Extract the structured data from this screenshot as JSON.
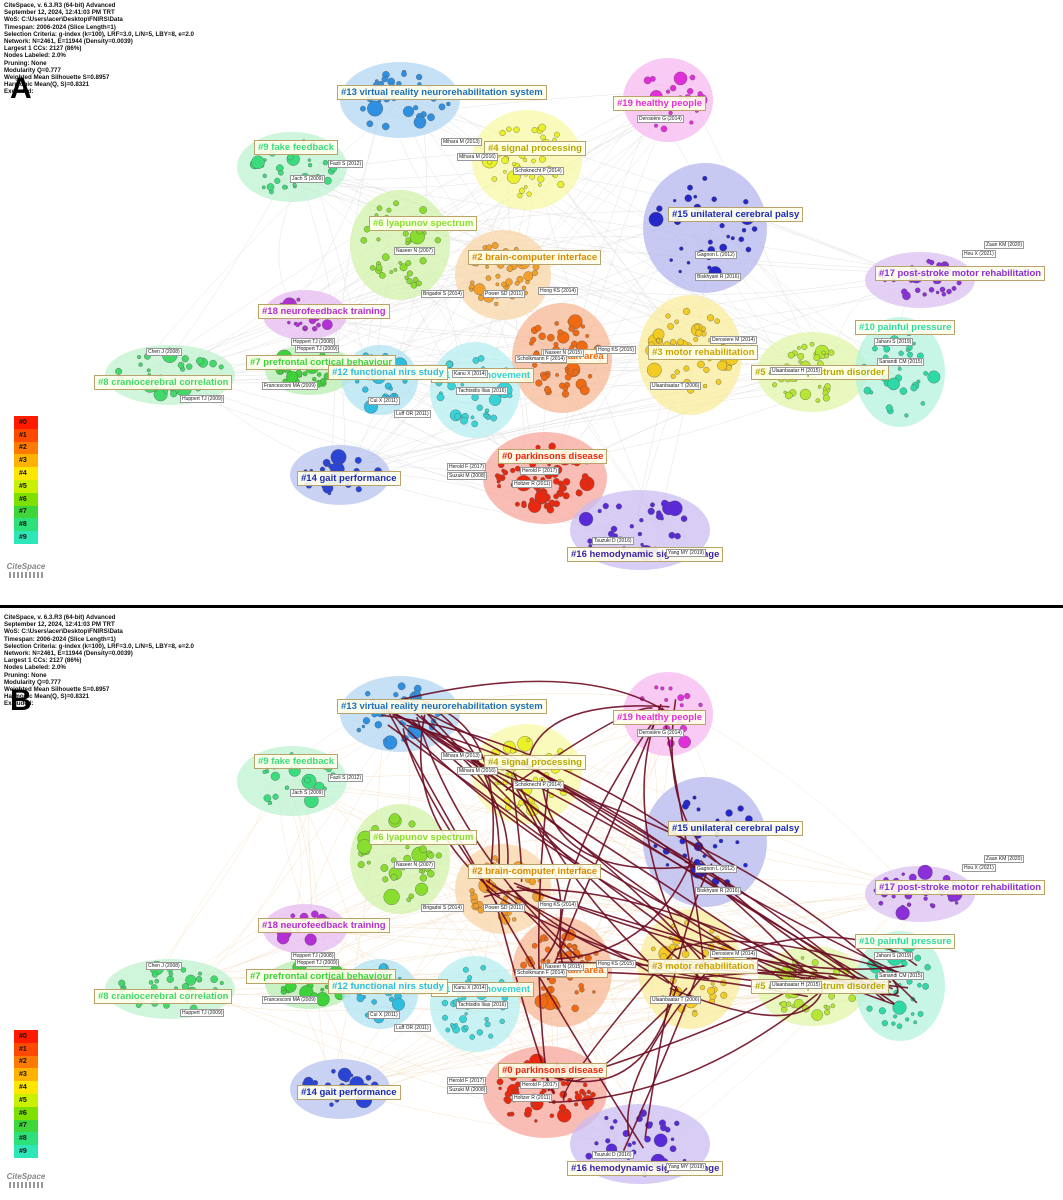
{
  "meta": {
    "lines": [
      "CiteSpace, v. 6.3.R3 (64-bit) Advanced",
      "September 12, 2024, 12:41:03 PM TRT",
      "WoS: C:\\Users\\acer\\Desktop\\FNIRS\\Data",
      "Timespan: 2006-2024 (Slice Length=1)",
      "Selection Criteria: g-index (k=100), LRF=3.0, L/N=5, LBY=8, e=2.0",
      "Network: N=2461, E=11944 (Density=0.0039)",
      "Largest 1 CCs: 2127 (86%)",
      "Nodes Labeled: 2.0%",
      "Pruning: None",
      "Modularity Q=0.777",
      "Weighted Mean Silhouette S=0.8957",
      "Harmonic Mean(Q, S)=0.8321",
      "Excluded:"
    ]
  },
  "panels": [
    {
      "letter": "A",
      "bursts": false
    },
    {
      "letter": "B",
      "bursts": true
    }
  ],
  "clusters": [
    {
      "id": 0,
      "label": "#0 parkinsons disease",
      "color": "#e8290f",
      "hull": "#f7a79c"
    },
    {
      "id": 1,
      "label": "#1 brain area",
      "color": "#ef6a12",
      "hull": "#f7b894"
    },
    {
      "id": 2,
      "label": "#2 brain-computer interface",
      "color": "#f2a02a",
      "hull": "#f9d6a8"
    },
    {
      "id": 3,
      "label": "#3 motor rehabilitation",
      "color": "#f2cb24",
      "hull": "#faec9c"
    },
    {
      "id": 4,
      "label": "#4 signal processing",
      "color": "#eaf02a",
      "hull": "#f7f8a6"
    },
    {
      "id": 5,
      "label": "#5 autism spectrum disorder",
      "color": "#b4e632",
      "hull": "#e2f5a8"
    },
    {
      "id": 6,
      "label": "#6 lyapunov spectrum",
      "color": "#88dd2e",
      "hull": "#d2f2a9"
    },
    {
      "id": 7,
      "label": "#7 prefrontal cortical behaviour",
      "color": "#3ed23a",
      "hull": "#b8efb2"
    },
    {
      "id": 8,
      "label": "#8 craniocerebral correlation",
      "color": "#42d86a",
      "hull": "#bff2cf"
    },
    {
      "id": 9,
      "label": "#9 fake feedback",
      "color": "#3bdc7e",
      "hull": "#bdf3d0"
    },
    {
      "id": 10,
      "label": "#10 painful pressure",
      "color": "#2fd9a6",
      "hull": "#b4f2de"
    },
    {
      "id": 11,
      "label": "#11 motor movement",
      "color": "#37d3d6",
      "hull": "#b6eef0"
    },
    {
      "id": 12,
      "label": "#12 functional nirs study",
      "color": "#2ebce0",
      "hull": "#b0e3f2"
    },
    {
      "id": 13,
      "label": "#13 virtual reality neurorehabilitation system",
      "color": "#2f8fe0",
      "hull": "#b3d5f2"
    },
    {
      "id": 14,
      "label": "#14 gait performance",
      "color": "#2a45d6",
      "hull": "#b8c3f0"
    },
    {
      "id": 15,
      "label": "#15 unilateral cerebral palsy",
      "color": "#2427c9",
      "hull": "#b6b7ee"
    },
    {
      "id": 16,
      "label": "#16 hemodynamic signal change",
      "color": "#5a2ad8",
      "hull": "#c9bcf2"
    },
    {
      "id": 17,
      "label": "#17 post-stroke motor rehabilitation",
      "color": "#8a2fd9",
      "hull": "#dcc0f2"
    },
    {
      "id": 18,
      "label": "#18 neurofeedback training",
      "color": "#b42fd6",
      "hull": "#e6baf0"
    },
    {
      "id": 19,
      "label": "#19 healthy people",
      "color": "#e02fd8",
      "hull": "#f5b8f0"
    }
  ],
  "node_labels": [
    "Mihara M (2013)",
    "Mihara M (2016)",
    "Schoknecht P (2014)",
    "Derosière G (2014)",
    "Gagnon L (2012)",
    "Biskhyani R (2016)",
    "Zaan KM (2020)",
    "Hou X (2021)",
    "Fazli S (2012)",
    "Jach S (2009)",
    "Naseer N (2007)",
    "Brigadoi S (2014)",
    "Power SD (2011)",
    "Hong KS (2014)",
    "Naseer N (2015)",
    "Hong KS (2015)",
    "Hoppert TJ (2008)",
    "Chen J (2008)",
    "Francesconi MA (2009)",
    "Cui X (2011)",
    "Luff OR (2011)",
    "Huppert TJ (2009)",
    "Kanu X (2014)",
    "Tachtsidis Ilias (2016)",
    "Scholkmann F (2014)",
    "Ulaanbaatar T (2006)",
    "Herold F (2017)",
    "Suzuki M (2008)",
    "Hoppert TJ (2009)",
    "Holtzer R (2011)",
    "Herold F (2017)",
    "Tsuzuki D (2016)",
    "Yang MY (2019)",
    "Jahani S (2019)",
    "Sanandi CM (2015)",
    "Derosiere M (2014)",
    "Ulaanbaatar H (2015)"
  ],
  "legend": {
    "items": [
      "#0",
      "#1",
      "#2",
      "#3",
      "#4",
      "#5",
      "#6",
      "#7",
      "#8",
      "#9"
    ],
    "colors": [
      "#ff1a00",
      "#ff4a00",
      "#ff7a00",
      "#ffb300",
      "#ffe600",
      "#c8f000",
      "#7ee000",
      "#3fd63a",
      "#2ee07a",
      "#2fe6b8"
    ]
  },
  "logo": {
    "text": "CiteSpace"
  }
}
